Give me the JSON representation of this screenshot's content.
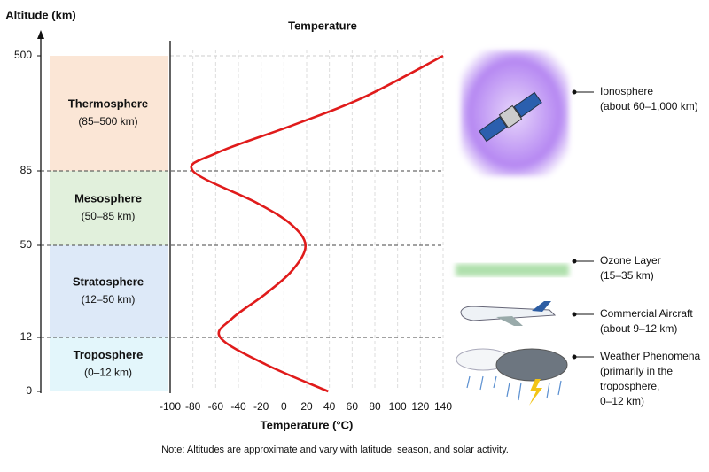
{
  "chart_data": {
    "type": "line",
    "title": "Temperature",
    "x_label": "Temperature (°C)",
    "y_label": "Altitude (km)",
    "xlim": [
      -100,
      140
    ],
    "xticks": [
      -100,
      -80,
      -60,
      -40,
      -20,
      0,
      20,
      40,
      60,
      80,
      100,
      120,
      140
    ],
    "ylim": [
      0,
      500
    ],
    "yticks": [
      0,
      12,
      50,
      85,
      500
    ],
    "grid": true,
    "series": [
      {
        "color": "#e01b1b",
        "x": [
          39,
          -16,
          -56,
          -45,
          -16,
          8,
          19,
          6,
          -24,
          -80,
          -59,
          8,
          70,
          140
        ],
        "values": [
          0,
          6,
          12,
          20,
          30,
          40,
          50,
          60,
          70,
          85,
          150,
          250,
          350,
          500
        ]
      }
    ],
    "layers": [
      {
        "name": "Troposphere",
        "range": "(0–12 km)",
        "color": "#e3f6fb"
      },
      {
        "name": "Stratosphere",
        "range": "(12–50 km)",
        "color": "#dde9f8"
      },
      {
        "name": "Mesosphere",
        "range": "(50–85 km)",
        "color": "#e1f0dc"
      },
      {
        "name": "Thermosphere",
        "range": "(85–500 km)",
        "color": "#fbe6d6"
      }
    ],
    "annotations": [
      {
        "lines": [
          "Ionosphere",
          "(about 60–1,000 km)"
        ]
      },
      {
        "lines": [
          "Ozone Layer",
          "(15–35 km)"
        ]
      },
      {
        "lines": [
          "Commercial Aircraft",
          "(about 9–12 km)"
        ]
      },
      {
        "lines": [
          "Weather Phenomena",
          "(primarily in the",
          "troposphere,",
          "0–12 km)"
        ]
      }
    ],
    "note": "Note: Altitudes are approximate and vary with latitude, season, and solar activity."
  }
}
